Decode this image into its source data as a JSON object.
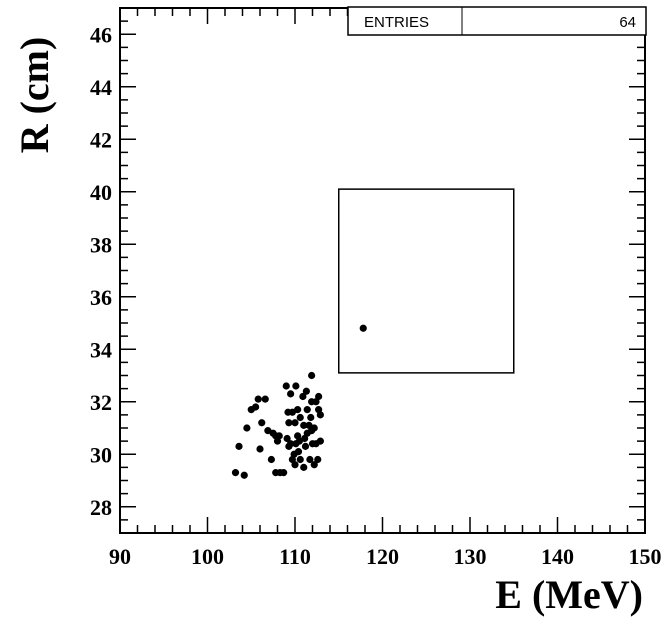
{
  "chart_data": {
    "type": "scatter",
    "title": "",
    "xlabel": "E (MeV)",
    "ylabel": "R (cm)",
    "xlim": [
      90,
      150
    ],
    "ylim": [
      27,
      47
    ],
    "x_ticks": [
      90,
      100,
      110,
      120,
      130,
      140,
      150
    ],
    "x_tick_labels": [
      "90",
      "100",
      "110",
      "120",
      "130",
      "140",
      "150"
    ],
    "y_ticks": [
      28,
      30,
      32,
      34,
      36,
      38,
      40,
      42,
      44,
      46
    ],
    "y_tick_labels": [
      "28",
      "30",
      "32",
      "34",
      "36",
      "38",
      "40",
      "42",
      "44",
      "46"
    ],
    "stats": {
      "label": "ENTRIES",
      "value": "64"
    },
    "signal_box": {
      "x": [
        115,
        135
      ],
      "y": [
        33.1,
        40.1
      ]
    },
    "points": [
      [
        117.8,
        34.8
      ],
      [
        103.2,
        29.3
      ],
      [
        103.6,
        30.3
      ],
      [
        104.2,
        29.2
      ],
      [
        104.5,
        31.0
      ],
      [
        105.0,
        31.7
      ],
      [
        105.5,
        31.8
      ],
      [
        105.8,
        32.1
      ],
      [
        106.0,
        30.2
      ],
      [
        106.6,
        32.1
      ],
      [
        106.9,
        30.9
      ],
      [
        107.3,
        29.8
      ],
      [
        107.8,
        30.7
      ],
      [
        107.8,
        29.3
      ],
      [
        108.2,
        30.7
      ],
      [
        108.3,
        29.3
      ],
      [
        108.7,
        29.3
      ],
      [
        109.0,
        32.6
      ],
      [
        109.1,
        30.6
      ],
      [
        109.3,
        31.2
      ],
      [
        109.3,
        30.3
      ],
      [
        109.5,
        32.3
      ],
      [
        109.5,
        30.4
      ],
      [
        109.7,
        31.6
      ],
      [
        109.7,
        29.8
      ],
      [
        109.9,
        30.0
      ],
      [
        110.0,
        31.2
      ],
      [
        110.0,
        29.6
      ],
      [
        110.1,
        32.6
      ],
      [
        110.1,
        30.4
      ],
      [
        110.3,
        31.7
      ],
      [
        110.3,
        30.7
      ],
      [
        110.5,
        30.5
      ],
      [
        110.6,
        29.8
      ],
      [
        110.9,
        32.2
      ],
      [
        111.0,
        31.1
      ],
      [
        111.0,
        29.5
      ],
      [
        111.1,
        30.6
      ],
      [
        111.2,
        30.3
      ],
      [
        111.4,
        31.7
      ],
      [
        111.4,
        30.8
      ],
      [
        111.6,
        31.1
      ],
      [
        111.7,
        29.8
      ],
      [
        111.9,
        33.0
      ],
      [
        111.9,
        32.0
      ],
      [
        111.9,
        30.9
      ],
      [
        112.0,
        30.4
      ],
      [
        112.2,
        29.6
      ],
      [
        112.2,
        31.0
      ],
      [
        112.4,
        32.0
      ],
      [
        112.4,
        30.4
      ],
      [
        112.6,
        29.8
      ],
      [
        112.7,
        32.2
      ],
      [
        112.7,
        31.7
      ],
      [
        112.9,
        31.5
      ],
      [
        112.9,
        30.5
      ],
      [
        109.2,
        31.6
      ],
      [
        110.6,
        31.4
      ],
      [
        111.3,
        32.4
      ],
      [
        108.0,
        30.5
      ],
      [
        110.4,
        30.1
      ],
      [
        111.8,
        31.4
      ],
      [
        107.5,
        30.8
      ],
      [
        106.2,
        31.2
      ]
    ],
    "grid": false,
    "legend": "none"
  }
}
